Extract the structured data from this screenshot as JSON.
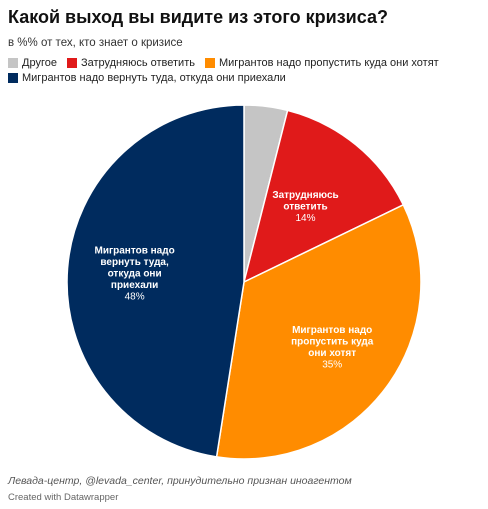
{
  "chart_data": {
    "type": "pie",
    "title": "Какой выход вы видите из этого кризиса?",
    "subtitle": "в %% от тех, кто знает о кризисе",
    "slices": [
      {
        "name": "Другое",
        "value": 4,
        "label": "",
        "value_label": "",
        "color": "#c5c5c5"
      },
      {
        "name": "Затрудняюсь ответить",
        "value": 14,
        "label": "Затрудняюсь ответить",
        "value_label": "14%",
        "color": "#e01a1a"
      },
      {
        "name": "Мигрантов надо пропустить куда они хотят",
        "value": 35,
        "label": "Мигрантов надо пропустить куда они хотят",
        "value_label": "35%",
        "color": "#ff8c00"
      },
      {
        "name": "Мигрантов надо вернуть туда, откуда они приехали",
        "value": 48,
        "label": "Мигрантов надо вернуть туда, откуда они приехали",
        "value_label": "48%",
        "color": "#002b5e"
      }
    ],
    "legend_placement": "top-left"
  },
  "footer": {
    "source": "Левада-центр, @levada_center, принудительно признан иноагентом",
    "credit": "Created with Datawrapper"
  }
}
